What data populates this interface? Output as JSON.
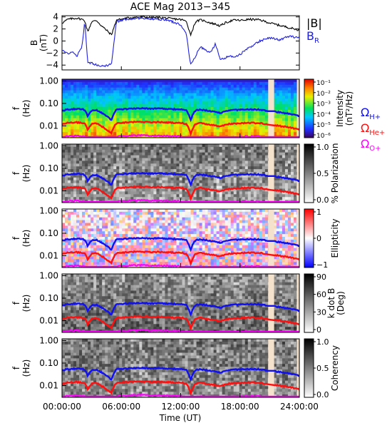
{
  "title": "ACE Mag 2013−345",
  "xlabel": "Time (UT)",
  "x_ticks": [
    "00:00:00",
    "06:00:00",
    "12:00:00",
    "18:00:00",
    "24:00:00"
  ],
  "colors": {
    "B_total": "#000000",
    "B_R": "#2020e0",
    "H_plus": "#1010f0",
    "He_plus": "#ff1010",
    "O_plus": "#ff00ff",
    "data_gap": "#f5e2cc"
  },
  "chart_data": [
    {
      "type": "line",
      "ylabel_main": "B",
      "ylabel_unit": "(nT)",
      "ylim": [
        -4.8,
        4.2
      ],
      "y_ticks": [
        "4",
        "2",
        "0",
        "−2",
        "−4"
      ],
      "x_range_hours": [
        0,
        24
      ],
      "legend": {
        "B_total": "|B|",
        "B_R": "B",
        "B_R_sub": "R"
      },
      "series": [
        {
          "name": "|B|",
          "x": [
            0,
            0.6,
            1.0,
            1.5,
            2.0,
            2.3,
            2.6,
            3.0,
            3.5,
            4.0,
            4.5,
            5.0,
            5.5,
            6.0,
            6.5,
            7.0,
            8.0,
            9.0,
            10.0,
            11.0,
            11.8,
            12.2,
            12.6,
            13.0,
            13.5,
            14.0,
            14.5,
            15.0,
            15.5,
            16.0,
            16.5,
            17.0,
            17.5,
            18.0,
            19.0,
            20.0,
            21.0,
            22.0,
            23.0,
            24.0
          ],
          "y": [
            3.0,
            3.6,
            3.7,
            3.8,
            3.6,
            3.4,
            1.5,
            3.2,
            3.4,
            2.5,
            1.8,
            1.0,
            3.5,
            3.6,
            3.8,
            3.9,
            4.0,
            3.9,
            3.9,
            3.7,
            3.6,
            3.5,
            3.2,
            1.0,
            3.2,
            3.5,
            3.3,
            3.0,
            2.8,
            2.5,
            3.0,
            3.3,
            3.5,
            3.4,
            3.6,
            3.5,
            3.0,
            2.6,
            2.2,
            1.8
          ]
        },
        {
          "name": "B",
          "x": [
            0,
            0.6,
            1.0,
            1.5,
            2.0,
            2.3,
            2.6,
            3.0,
            3.5,
            4.0,
            4.5,
            5.0,
            5.5,
            6.0,
            6.5,
            7.0,
            8.0,
            9.0,
            10.0,
            11.0,
            11.8,
            12.2,
            12.6,
            13.0,
            13.5,
            14.0,
            14.5,
            15.0,
            15.5,
            16.0,
            16.5,
            17.0,
            17.5,
            18.0,
            19.0,
            20.0,
            21.0,
            22.0,
            23.0,
            24.0
          ],
          "y": [
            -1.5,
            -2.2,
            -1.8,
            -2.5,
            -1.0,
            3.2,
            -3.5,
            -3.7,
            -4.0,
            -4.2,
            -4.1,
            -3.8,
            3.2,
            3.4,
            3.6,
            3.7,
            3.8,
            3.7,
            3.6,
            3.3,
            2.8,
            2.2,
            1.0,
            -4.0,
            -2.5,
            -1.0,
            -1.5,
            -2.0,
            -0.5,
            -3.0,
            -2.8,
            -2.5,
            -2.6,
            -2.2,
            -1.0,
            0.0,
            0.5,
            0.2,
            0.8,
            0.5
          ]
        }
      ]
    },
    {
      "type": "heatmap",
      "name": "intensity",
      "ylabel_main": "f",
      "ylabel_unit": "(Hz)",
      "y_scale": "log",
      "ylim": [
        0.003,
        1.2
      ],
      "y_ticks": [
        "1.00",
        "0.10",
        "0.01"
      ],
      "colorbar_label": "Intensity",
      "colorbar_unit": "(nT²/Hz)",
      "colorbar_ticks": [
        "10⁻¹",
        "10⁻²",
        "10⁻³",
        "10⁻⁴",
        "10⁻⁵",
        "10⁻⁶"
      ],
      "colormap": "rainbow",
      "ion_labels": [
        {
          "symbol": "Ω",
          "sub": "H+"
        },
        {
          "symbol": "Ω",
          "sub": "He+"
        },
        {
          "symbol": "Ω",
          "sub": "O+"
        }
      ]
    },
    {
      "type": "heatmap",
      "name": "polarization",
      "ylabel_main": "f",
      "ylabel_unit": "(Hz)",
      "y_scale": "log",
      "y_ticks": [
        "1.00",
        "0.10",
        "0.01"
      ],
      "colorbar_label": "% Polarization",
      "colorbar_ticks": [
        "1.0",
        "0.5",
        "0.0"
      ],
      "colormap": "grayscale"
    },
    {
      "type": "heatmap",
      "name": "ellipticity",
      "ylabel_main": "f",
      "ylabel_unit": "(Hz)",
      "y_scale": "log",
      "y_ticks": [
        "1.00",
        "0.10",
        "0.01"
      ],
      "colorbar_label": "Ellipticity",
      "colorbar_ticks": [
        "1",
        "0",
        "−1"
      ],
      "colormap": "red-white-blue"
    },
    {
      "type": "heatmap",
      "name": "k_dot_b",
      "ylabel_main": "f",
      "ylabel_unit": "(Hz)",
      "y_scale": "log",
      "y_ticks": [
        "1.00",
        "0.10",
        "0.01"
      ],
      "colorbar_label": "k dot B",
      "colorbar_unit": "(Deg)",
      "colorbar_ticks": [
        "90",
        "60",
        "30",
        "0"
      ],
      "colormap": "grayscale"
    },
    {
      "type": "heatmap",
      "name": "coherency",
      "ylabel_main": "f",
      "ylabel_unit": "(Hz)",
      "y_scale": "log",
      "y_ticks": [
        "1.00",
        "0.10",
        "0.01"
      ],
      "colorbar_label": "Coherency",
      "colorbar_ticks": [
        "1.0",
        "0.5",
        "0.0"
      ],
      "colormap": "grayscale"
    }
  ],
  "gyrofrequency": {
    "x": [
      0,
      0.5,
      1.0,
      1.5,
      2.0,
      2.3,
      2.6,
      3.0,
      3.5,
      4.0,
      4.5,
      5.0,
      5.5,
      6.0,
      7.0,
      8.0,
      9.0,
      10.0,
      11.0,
      11.8,
      12.2,
      12.6,
      13.0,
      13.5,
      14.0,
      15.0,
      16.0,
      17.0,
      18.0,
      19.0,
      20.0,
      21.0,
      22.0,
      23.0,
      24.0
    ],
    "H_plus_hz": [
      0.045,
      0.055,
      0.056,
      0.058,
      0.055,
      0.052,
      0.025,
      0.049,
      0.052,
      0.038,
      0.028,
      0.018,
      0.053,
      0.055,
      0.059,
      0.061,
      0.059,
      0.059,
      0.056,
      0.055,
      0.053,
      0.049,
      0.017,
      0.049,
      0.053,
      0.046,
      0.038,
      0.05,
      0.052,
      0.055,
      0.053,
      0.046,
      0.04,
      0.034,
      0.028
    ]
  }
}
